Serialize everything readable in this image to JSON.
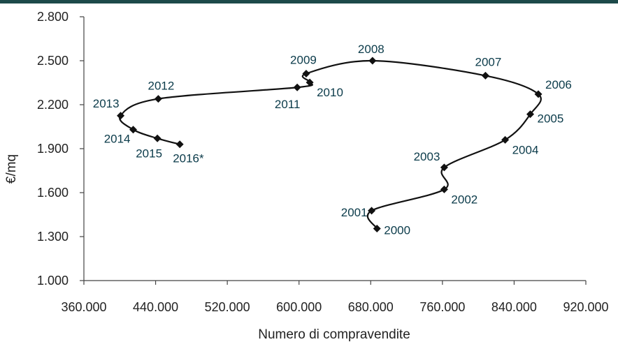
{
  "colors": {
    "top_bar": "#1d4a4a",
    "line": "#111111",
    "marker": "#111111",
    "label": "#0b3b4a",
    "axis": "#444444"
  },
  "chart_data": {
    "type": "scatter",
    "connected": true,
    "smooth": true,
    "marker": "diamond",
    "xlabel": "Numero di compravendite",
    "ylabel": "€/mq",
    "xlim": [
      360000,
      920000
    ],
    "ylim": [
      1000,
      2800
    ],
    "x_ticks": [
      360000,
      440000,
      520000,
      600000,
      680000,
      760000,
      840000,
      920000
    ],
    "x_tick_labels": [
      "360.000",
      "440.000",
      "520.000",
      "600.000",
      "680.000",
      "760.000",
      "840.000",
      "920.000"
    ],
    "y_ticks": [
      1000,
      1300,
      1600,
      1900,
      2200,
      2500,
      2800
    ],
    "y_tick_labels": [
      "1.000",
      "1.300",
      "1.600",
      "1.900",
      "2.200",
      "2.500",
      "2.800"
    ],
    "grid": false,
    "points": [
      {
        "label": "2000",
        "x": 687000,
        "y": 1355
      },
      {
        "label": "2001",
        "x": 681000,
        "y": 1477
      },
      {
        "label": "2002",
        "x": 762000,
        "y": 1622
      },
      {
        "label": "2003",
        "x": 762000,
        "y": 1772
      },
      {
        "label": "2004",
        "x": 830000,
        "y": 1960
      },
      {
        "label": "2005",
        "x": 858000,
        "y": 2135
      },
      {
        "label": "2006",
        "x": 867000,
        "y": 2272
      },
      {
        "label": "2007",
        "x": 808000,
        "y": 2398
      },
      {
        "label": "2008",
        "x": 682000,
        "y": 2500
      },
      {
        "label": "2009",
        "x": 608000,
        "y": 2412
      },
      {
        "label": "2010",
        "x": 612000,
        "y": 2352
      },
      {
        "label": "2011",
        "x": 598000,
        "y": 2318
      },
      {
        "label": "2012",
        "x": 443000,
        "y": 2240
      },
      {
        "label": "2013",
        "x": 401000,
        "y": 2125
      },
      {
        "label": "2014",
        "x": 415000,
        "y": 2030
      },
      {
        "label": "2015",
        "x": 442000,
        "y": 1970
      },
      {
        "label": "2016*",
        "x": 467000,
        "y": 1930
      }
    ]
  }
}
